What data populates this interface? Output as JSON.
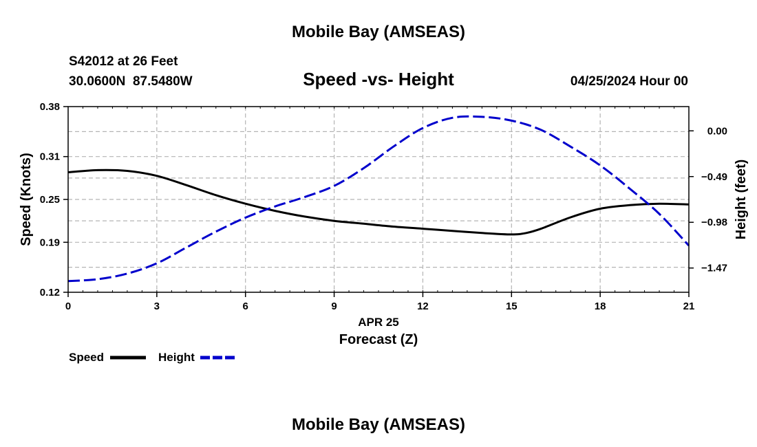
{
  "header": {
    "top_title": "Mobile Bay (AMSEAS)",
    "station_line": "S42012 at 26 Feet",
    "coords_line": "30.0600N  87.5480W",
    "date_line": "04/25/2024 Hour 00",
    "bottom_title": "Mobile Bay (AMSEAS)"
  },
  "colors": {
    "speed": "#000000",
    "height": "#0000cc",
    "grid": "#b4b4b4"
  },
  "chart_data": {
    "type": "line",
    "title": "Speed -vs- Height",
    "xlabel": "Forecast (Z)",
    "xsublabel": "APR 25",
    "ylabel": "Speed (Knots)",
    "y2label": "Height (feet)",
    "xlim": [
      0,
      21
    ],
    "ylim": [
      0.12,
      0.38
    ],
    "y2lim": [
      -1.73,
      0.26
    ],
    "x_ticks": [
      0,
      3,
      6,
      9,
      12,
      15,
      18,
      21
    ],
    "y_ticks": [
      "0.12",
      "0.19",
      "0.25",
      "0.31",
      "0.38"
    ],
    "y2_ticks": [
      "0.00",
      "-0.49",
      "-0.98",
      "-1.47"
    ],
    "y2_tick_values": [
      0.0,
      -0.49,
      -0.98,
      -1.47
    ],
    "grid": true,
    "legend": "bottom-left",
    "series": [
      {
        "name": "Speed",
        "axis": "left",
        "x": [
          0,
          1,
          2,
          3,
          4,
          5,
          6,
          7,
          8,
          9,
          10,
          11,
          12,
          13,
          14,
          15,
          15.5,
          16,
          17,
          18,
          19,
          20,
          21
        ],
        "values": [
          0.288,
          0.291,
          0.29,
          0.283,
          0.27,
          0.256,
          0.244,
          0.234,
          0.226,
          0.22,
          0.216,
          0.212,
          0.209,
          0.206,
          0.203,
          0.201,
          0.203,
          0.209,
          0.225,
          0.237,
          0.242,
          0.244,
          0.243
        ]
      },
      {
        "name": "Height",
        "axis": "right",
        "x": [
          0,
          1,
          2,
          3,
          4,
          5,
          6,
          7,
          8,
          9,
          10,
          11,
          12,
          13,
          14,
          15,
          16,
          17,
          18,
          19,
          20,
          21
        ],
        "values": [
          -1.61,
          -1.59,
          -1.53,
          -1.42,
          -1.25,
          -1.08,
          -0.93,
          -0.81,
          -0.71,
          -0.59,
          -0.4,
          -0.17,
          0.03,
          0.14,
          0.15,
          0.11,
          0.01,
          -0.17,
          -0.37,
          -0.62,
          -0.89,
          -1.23
        ]
      }
    ]
  }
}
